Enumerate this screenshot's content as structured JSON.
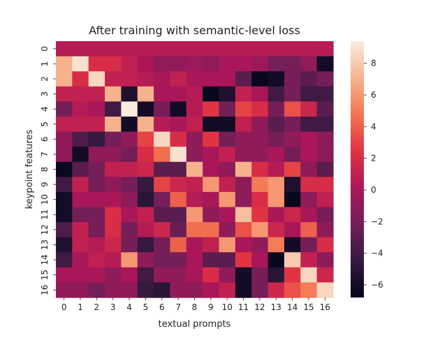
{
  "chart_data": {
    "type": "heatmap",
    "title": "After training with semantic-level loss",
    "xlabel": "textual prompts",
    "ylabel": "keypoint features",
    "x_categories": [
      "0",
      "1",
      "2",
      "3",
      "4",
      "5",
      "6",
      "7",
      "8",
      "9",
      "10",
      "11",
      "12",
      "13",
      "14",
      "15",
      "16"
    ],
    "y_categories": [
      "0",
      "1",
      "2",
      "3",
      "4",
      "5",
      "6",
      "7",
      "8",
      "9",
      "10",
      "11",
      "12",
      "13",
      "14",
      "15",
      "16"
    ],
    "colorbar": {
      "min": -6.8,
      "max": 9.4,
      "ticks": [
        8,
        6,
        4,
        2,
        0,
        -2,
        -4,
        -6
      ],
      "tick_labels": [
        "8",
        "6",
        "4",
        "2",
        "0",
        "−2",
        "−4",
        "−6"
      ]
    },
    "colormap": "rocket",
    "colormap_stops": [
      "#03051a",
      "#35193e",
      "#701f57",
      "#ad1759",
      "#e13342",
      "#f37651",
      "#f6b48f",
      "#faebdd"
    ],
    "values": [
      [
        0.5,
        0.5,
        0.5,
        0.5,
        0.5,
        0.5,
        0.5,
        0.5,
        0.5,
        0.5,
        0.5,
        0.5,
        0.5,
        0.5,
        0.5,
        0.5,
        0.5
      ],
      [
        7.0,
        9.0,
        2.0,
        2.0,
        1.0,
        0.0,
        -1.0,
        -1.0,
        -0.5,
        -1.0,
        0.0,
        0.0,
        -0.5,
        -2.0,
        -2.0,
        -1.0,
        -6.0
      ],
      [
        7.0,
        2.0,
        8.5,
        1.0,
        1.0,
        0.5,
        0.0,
        1.0,
        0.0,
        0.0,
        0.0,
        -3.0,
        -6.5,
        -6.0,
        -2.0,
        -3.0,
        -2.0
      ],
      [
        1.0,
        1.0,
        1.0,
        7.0,
        -5.5,
        7.0,
        0.0,
        0.0,
        0.5,
        -6.5,
        -5.5,
        1.0,
        0.0,
        -4.0,
        -2.0,
        -4.0,
        -4.0
      ],
      [
        -2.0,
        0.5,
        0.0,
        -4.0,
        9.5,
        -6.0,
        -2.0,
        -6.0,
        0.5,
        2.5,
        -2.0,
        3.0,
        2.0,
        -2.0,
        3.5,
        1.5,
        -3.0
      ],
      [
        1.0,
        1.0,
        1.0,
        7.0,
        -6.0,
        7.0,
        0.5,
        0.0,
        1.0,
        -6.0,
        -6.0,
        1.0,
        -1.0,
        -3.0,
        -2.0,
        -4.0,
        -4.0
      ],
      [
        -1.0,
        -3.5,
        -4.5,
        -2.0,
        -1.0,
        3.0,
        8.5,
        2.0,
        -1.0,
        2.5,
        -2.0,
        -1.0,
        -1.0,
        -2.0,
        -1.0,
        0.0,
        -1.0
      ],
      [
        -1.0,
        -6.0,
        -1.0,
        -1.0,
        -2.0,
        2.0,
        4.5,
        9.0,
        -1.0,
        0.0,
        1.0,
        -1.0,
        -1.0,
        0.0,
        -2.0,
        0.0,
        -1.0
      ],
      [
        -6.5,
        -3.0,
        -2.0,
        1.0,
        1.0,
        1.5,
        -3.0,
        -3.0,
        7.0,
        0.0,
        -1.0,
        7.0,
        2.0,
        0.5,
        3.0,
        -1.0,
        -3.0
      ],
      [
        -4.0,
        1.0,
        -2.0,
        -1.0,
        -2.0,
        -4.5,
        3.0,
        1.5,
        1.0,
        6.0,
        1.0,
        -1.0,
        5.0,
        6.0,
        -5.5,
        2.0,
        2.0
      ],
      [
        -6.0,
        0.0,
        0.0,
        0.0,
        -1.0,
        -5.0,
        -2.0,
        4.0,
        0.5,
        0.0,
        6.0,
        -1.0,
        2.0,
        6.0,
        -6.5,
        -1.0,
        1.0
      ],
      [
        -6.0,
        -2.0,
        -2.0,
        2.0,
        0.0,
        1.0,
        -3.0,
        -3.0,
        6.0,
        -1.0,
        0.0,
        7.5,
        2.5,
        0.0,
        1.5,
        0.0,
        -2.0
      ],
      [
        -3.5,
        1.0,
        -2.0,
        2.0,
        -2.0,
        0.5,
        1.5,
        -2.5,
        4.5,
        4.5,
        -1.0,
        3.5,
        6.0,
        1.5,
        0.0,
        4.0,
        -1.0
      ],
      [
        -5.5,
        1.0,
        0.5,
        1.5,
        -2.0,
        -4.5,
        -2.0,
        4.0,
        0.0,
        1.0,
        6.0,
        0.0,
        -1.0,
        5.0,
        -6.0,
        -2.0,
        2.0
      ],
      [
        -4.0,
        0.0,
        1.0,
        0.5,
        6.0,
        -1.0,
        -2.0,
        -2.0,
        0.0,
        -3.0,
        -3.0,
        2.5,
        0.0,
        -6.5,
        8.0,
        1.0,
        -1.0
      ],
      [
        0.0,
        0.0,
        0.0,
        -1.0,
        0.0,
        -4.0,
        -1.0,
        -1.0,
        0.0,
        2.0,
        -1.0,
        -6.0,
        -2.0,
        -5.0,
        2.5,
        8.5,
        1.5
      ],
      [
        -1.0,
        -1.0,
        -2.0,
        -1.0,
        -1.0,
        -4.5,
        -5.0,
        -1.0,
        -1.0,
        0.0,
        1.0,
        -6.0,
        -2.0,
        1.5,
        3.5,
        5.0,
        8.5
      ]
    ]
  }
}
